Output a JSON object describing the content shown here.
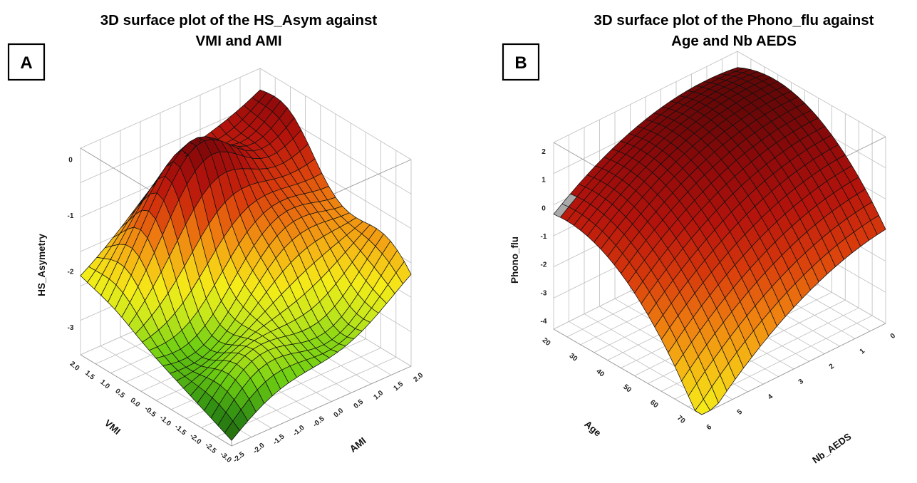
{
  "chart_data": [
    {
      "type": "surface3d",
      "panel_label": "A",
      "title_lines": [
        "3D surface plot of the HS_Asym against",
        "VMI and AMI"
      ],
      "xlabel": "VMI",
      "ylabel": "AMI",
      "zlabel": "HS_Asymetry",
      "x_ticks": [
        "2.0",
        "1.5",
        "1.0",
        "0.5",
        "0.0",
        "-0.5",
        "-1.0",
        "-1.5",
        "-2.0",
        "-2.5",
        "-3.0"
      ],
      "y_ticks": [
        "-2.5",
        "-2.0",
        "-1.5",
        "-1.0",
        "-0.5",
        "0.0",
        "0.5",
        "1.0",
        "1.5",
        "2.0"
      ],
      "z_ticks": [
        "0",
        "-1",
        "-2",
        "-3"
      ],
      "xlim": [
        -3.0,
        2.0
      ],
      "ylim": [
        -2.5,
        2.0
      ],
      "zlim": [
        -3.5,
        0.2
      ],
      "corner_heights": {
        "vmi_max_ami_min": -2.1,
        "vmi_max_ami_max": -0.2,
        "vmi_min_ami_max": -1.95,
        "vmi_min_ami_min": -3.4
      },
      "colormap": [
        "#1f5a10",
        "#2e8c12",
        "#6fcf12",
        "#c8e81c",
        "#f5ec18",
        "#f5b814",
        "#ee7c10",
        "#d83a0c",
        "#b6140c",
        "#8e0a0a",
        "#5a0606"
      ],
      "grid": true
    },
    {
      "type": "surface3d",
      "panel_label": "B",
      "title_lines": [
        "3D surface plot of the Phono_flu against",
        "Age and Nb AEDS"
      ],
      "xlabel": "Age",
      "ylabel": "Nb_AEDS",
      "zlabel": "Phono_flu",
      "x_ticks": [
        "20",
        "30",
        "40",
        "50",
        "60",
        "70"
      ],
      "y_ticks": [
        "6",
        "5",
        "4",
        "3",
        "2",
        "1",
        "0"
      ],
      "z_ticks": [
        "2",
        "1",
        "0",
        "-1",
        "-2",
        "-3",
        "-4"
      ],
      "xlim": [
        20,
        75
      ],
      "ylim": [
        0,
        6
      ],
      "zlim": [
        -4.3,
        2.3
      ],
      "peak": {
        "Age": 20,
        "Nb_AEDS": 0,
        "Phono_flu": 2.2
      },
      "colormap": [
        "#f5ec18",
        "#f5b814",
        "#ee7c10",
        "#d83a0c",
        "#b6140c",
        "#8e0a0a",
        "#5a0606"
      ],
      "grid": true
    }
  ]
}
